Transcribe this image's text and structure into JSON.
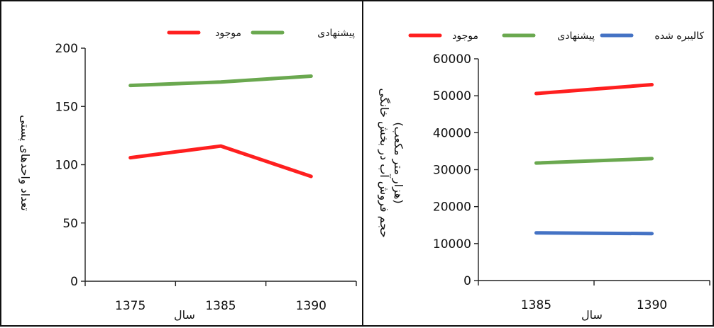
{
  "chart_data": [
    {
      "type": "line",
      "title": "",
      "xlabel": "سال",
      "ylabel": "تعداد واحدهای پستی",
      "categories": [
        "1375",
        "1385",
        "1390"
      ],
      "ylim": [
        0,
        200
      ],
      "yticks": [
        "0",
        "50",
        "100",
        "150",
        "200"
      ],
      "legend_position": "top-right",
      "series": [
        {
          "name": "موجود",
          "color": "#ff1f1f",
          "values": [
            106,
            116,
            90
          ]
        },
        {
          "name": "پیشنهادی",
          "color": "#6aa84f",
          "values": [
            168,
            171,
            176
          ]
        }
      ]
    },
    {
      "type": "line",
      "title": "",
      "xlabel": "سال",
      "ylabel": "حجم فروش آب در بخش خانگی",
      "ylabel2": "(هزار متر مکعب)",
      "categories": [
        "1385",
        "1390"
      ],
      "ylim": [
        0,
        60000
      ],
      "yticks": [
        "0",
        "10000",
        "20000",
        "30000",
        "40000",
        "50000",
        "60000"
      ],
      "legend_position": "top",
      "series": [
        {
          "name": "موجود",
          "color": "#ff1f1f",
          "values": [
            50600,
            53000
          ]
        },
        {
          "name": "پیشنهادی",
          "color": "#6aa84f",
          "values": [
            31800,
            33000
          ]
        },
        {
          "name": "کالیبره شده",
          "color": "#4472c4",
          "values": [
            12900,
            12700
          ]
        }
      ]
    }
  ]
}
